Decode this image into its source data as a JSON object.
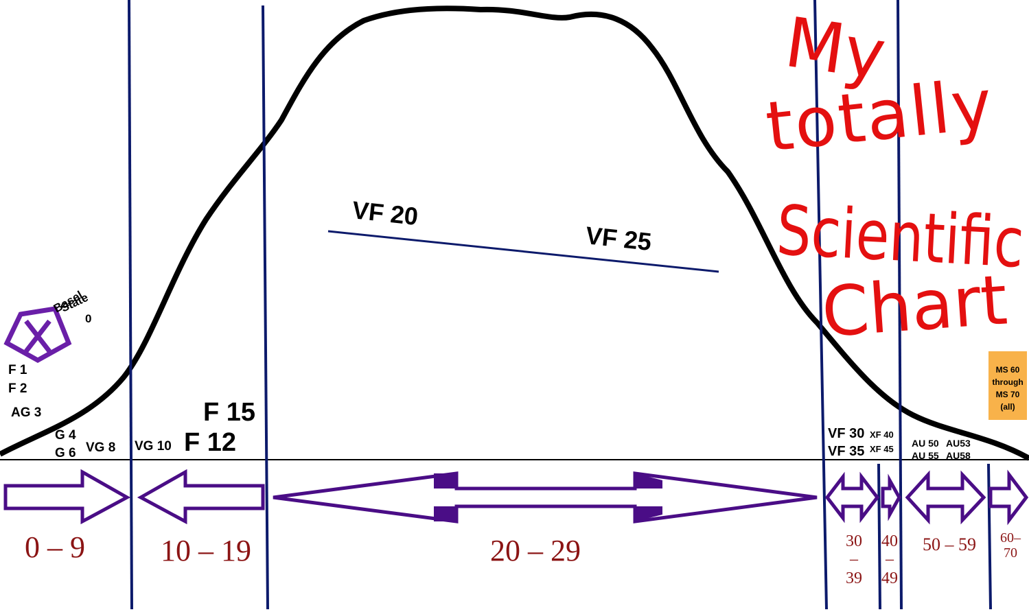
{
  "title": [
    "My",
    "totally",
    "Scientific",
    "Chart"
  ],
  "basel_state": [
    "Basel",
    "State",
    "0"
  ],
  "grades": {
    "f1": "F 1",
    "f2": "F 2",
    "ag3": "AG 3",
    "g4": "G 4",
    "g6": "G 6",
    "vg8": "VG 8",
    "vg10": "VG 10",
    "f12": "F 12",
    "f15": "F 15",
    "vf20": "VF 20",
    "vf25": "VF 25",
    "vf30": "VF 30",
    "vf35": "VF 35",
    "xf40": "XF 40",
    "xf45": "XF 45",
    "au50": "AU 50",
    "au53": "AU53",
    "au55": "AU 55",
    "au58": "AU58"
  },
  "ms_box": [
    "MS 60",
    "through",
    "MS 70",
    "(all)"
  ],
  "ranges": [
    [
      "0 – 9"
    ],
    [
      "10 – 19"
    ],
    [
      "20 – 29"
    ],
    [
      "30",
      "–",
      "39"
    ],
    [
      "40",
      "–",
      "49"
    ],
    [
      "50 – 59"
    ],
    [
      "60–",
      "70"
    ]
  ]
}
